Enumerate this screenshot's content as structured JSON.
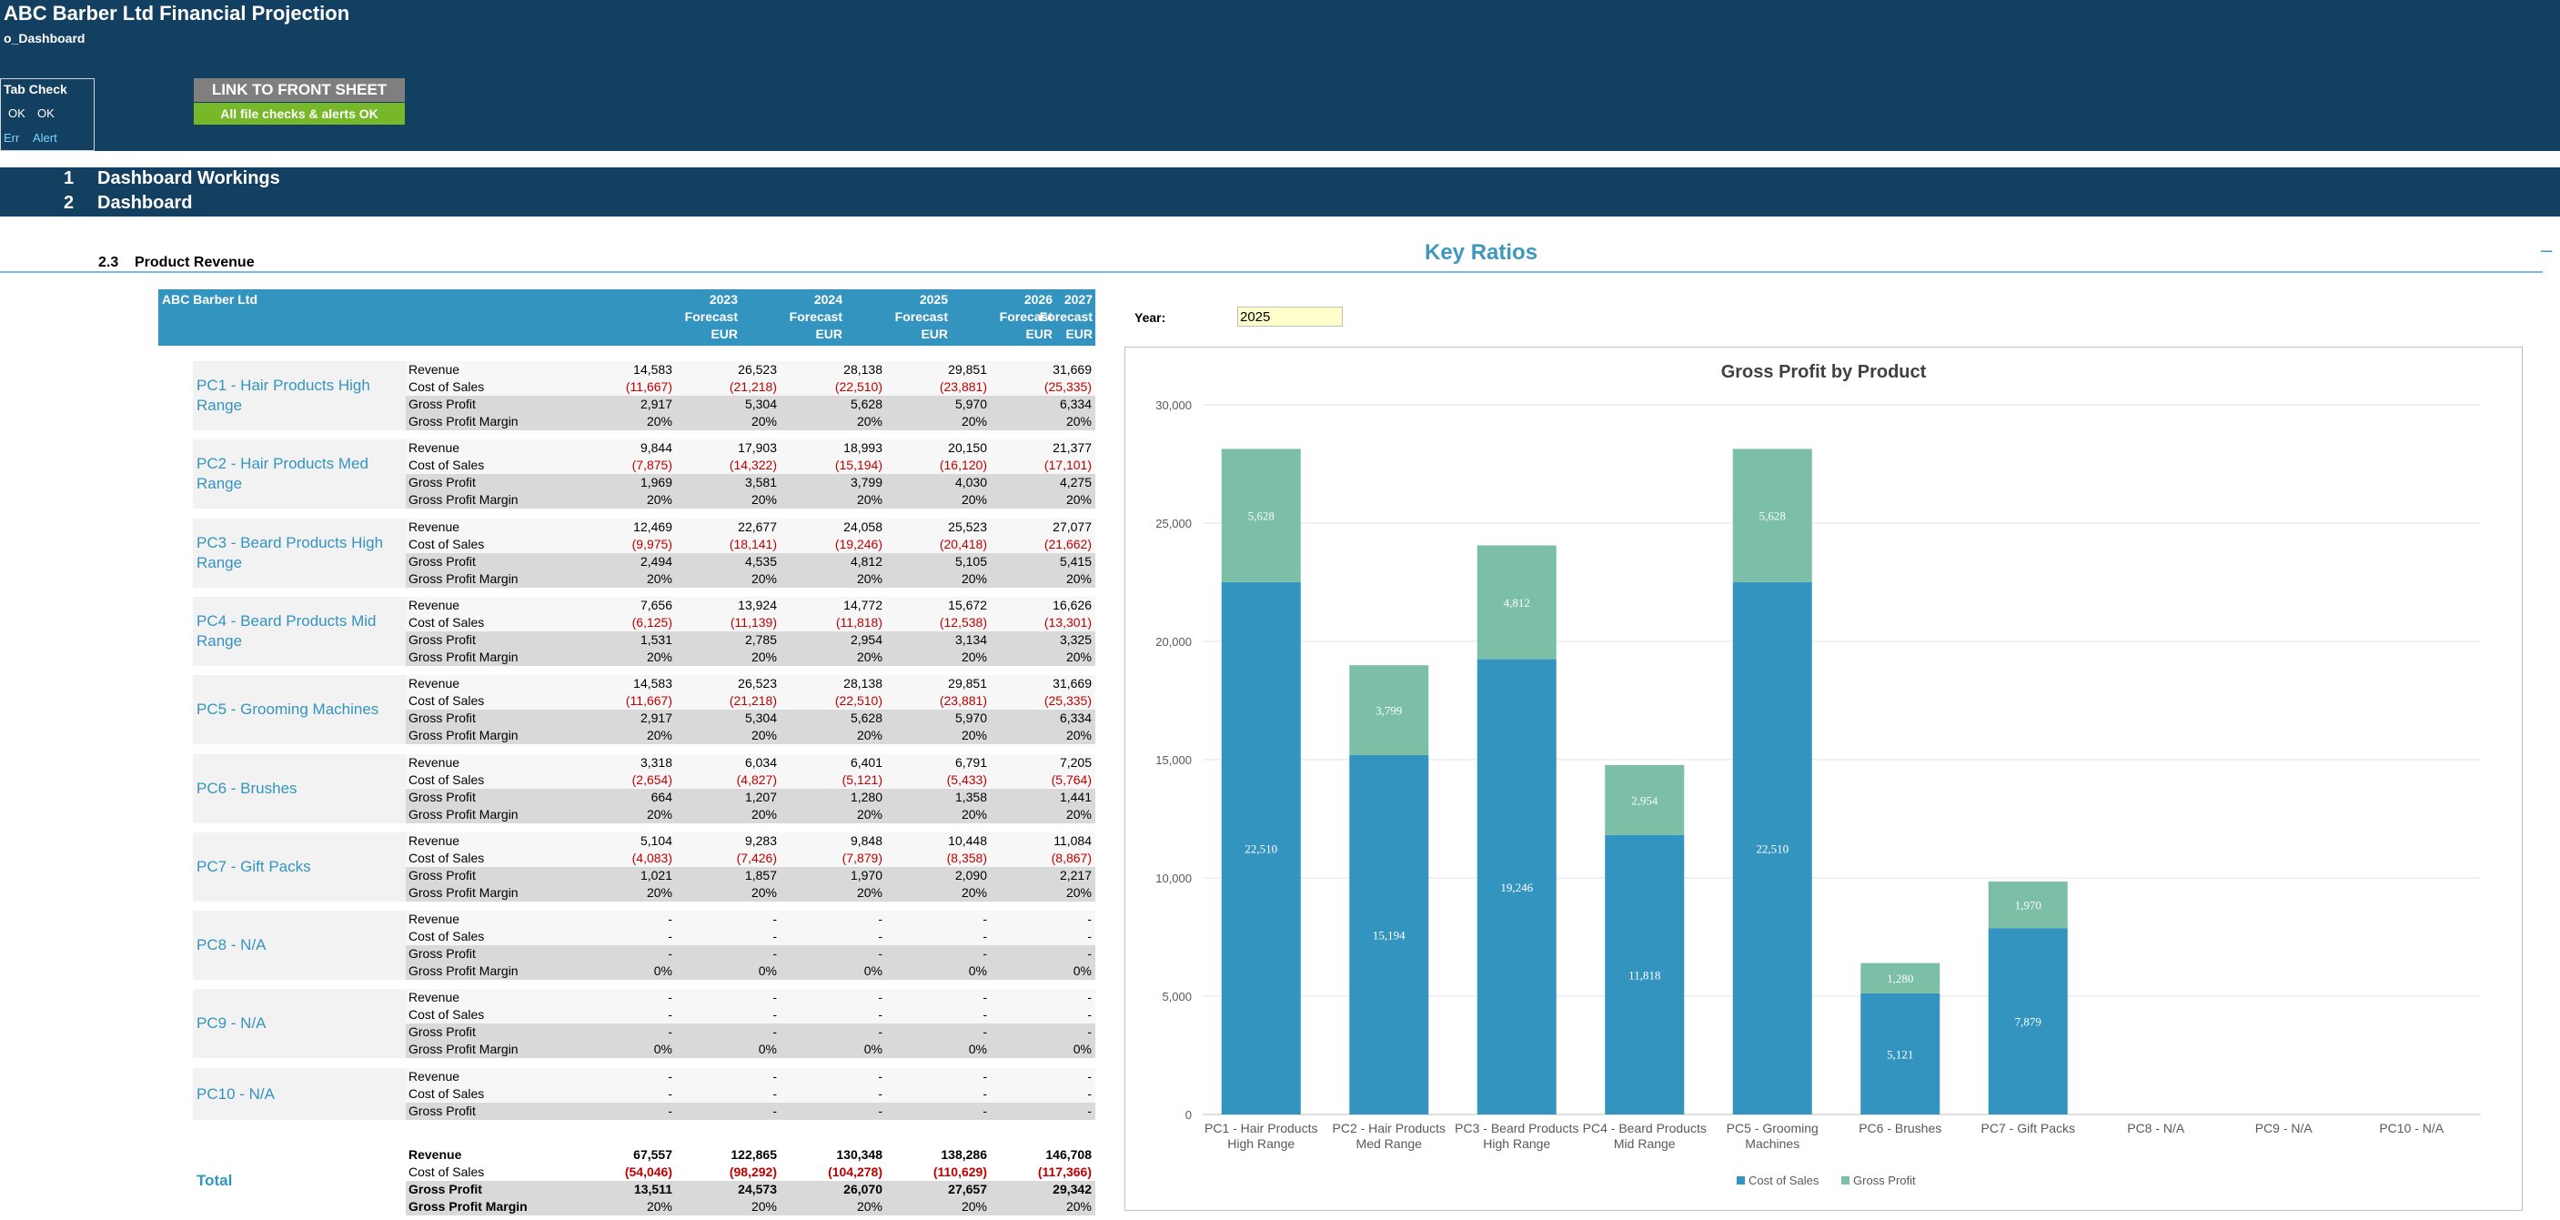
{
  "header": {
    "title": "ABC Barber Ltd Financial Projection",
    "sheet": "o_Dashboard",
    "tab_check": "Tab Check",
    "ok1": "OK",
    "ok2": "OK",
    "err": "Err",
    "alert": "Alert",
    "link_button": "LINK TO FRONT SHEET",
    "checks_status": "All file checks & alerts OK",
    "colors": {
      "band": "#133f61",
      "link": "#7f7f7f",
      "ok": "#76b82a"
    }
  },
  "sections": [
    {
      "num": "1",
      "label": "Dashboard Workings"
    },
    {
      "num": "2",
      "label": "Dashboard"
    }
  ],
  "subsection": {
    "num": "2.3",
    "label": "Product Revenue"
  },
  "key_ratios": {
    "title": "Key Ratios",
    "collapse": "–"
  },
  "table": {
    "company": "ABC Barber Ltd",
    "columns": [
      {
        "year": "2023",
        "type": "Forecast",
        "currency": "EUR"
      },
      {
        "year": "2024",
        "type": "Forecast",
        "currency": "EUR"
      },
      {
        "year": "2025",
        "type": "Forecast",
        "currency": "EUR"
      },
      {
        "year": "2026",
        "type": "Forecast",
        "currency": "EUR"
      },
      {
        "year": "2027",
        "type": "Forecast",
        "currency": "EUR"
      }
    ],
    "products": [
      {
        "name": "PC1 - Hair Products High Range",
        "rows": [
          {
            "label": "Revenue",
            "values": [
              "14,583",
              "26,523",
              "28,138",
              "29,851",
              "31,669"
            ]
          },
          {
            "label": "Cost of Sales",
            "values": [
              "(11,667)",
              "(21,218)",
              "(22,510)",
              "(23,881)",
              "(25,335)"
            ],
            "neg": true
          },
          {
            "label": "Gross Profit",
            "values": [
              "2,917",
              "5,304",
              "5,628",
              "5,970",
              "6,334"
            ]
          },
          {
            "label": "Gross Profit Margin",
            "values": [
              "20%",
              "20%",
              "20%",
              "20%",
              "20%"
            ]
          }
        ]
      },
      {
        "name": "PC2 - Hair Products Med Range",
        "rows": [
          {
            "label": "Revenue",
            "values": [
              "9,844",
              "17,903",
              "18,993",
              "20,150",
              "21,377"
            ]
          },
          {
            "label": "Cost of Sales",
            "values": [
              "(7,875)",
              "(14,322)",
              "(15,194)",
              "(16,120)",
              "(17,101)"
            ],
            "neg": true
          },
          {
            "label": "Gross Profit",
            "values": [
              "1,969",
              "3,581",
              "3,799",
              "4,030",
              "4,275"
            ]
          },
          {
            "label": "Gross Profit Margin",
            "values": [
              "20%",
              "20%",
              "20%",
              "20%",
              "20%"
            ]
          }
        ]
      },
      {
        "name": "PC3 - Beard Products High Range",
        "rows": [
          {
            "label": "Revenue",
            "values": [
              "12,469",
              "22,677",
              "24,058",
              "25,523",
              "27,077"
            ]
          },
          {
            "label": "Cost of Sales",
            "values": [
              "(9,975)",
              "(18,141)",
              "(19,246)",
              "(20,418)",
              "(21,662)"
            ],
            "neg": true
          },
          {
            "label": "Gross Profit",
            "values": [
              "2,494",
              "4,535",
              "4,812",
              "5,105",
              "5,415"
            ]
          },
          {
            "label": "Gross Profit Margin",
            "values": [
              "20%",
              "20%",
              "20%",
              "20%",
              "20%"
            ]
          }
        ]
      },
      {
        "name": "PC4 - Beard Products Mid Range",
        "rows": [
          {
            "label": "Revenue",
            "values": [
              "7,656",
              "13,924",
              "14,772",
              "15,672",
              "16,626"
            ]
          },
          {
            "label": "Cost of Sales",
            "values": [
              "(6,125)",
              "(11,139)",
              "(11,818)",
              "(12,538)",
              "(13,301)"
            ],
            "neg": true
          },
          {
            "label": "Gross Profit",
            "values": [
              "1,531",
              "2,785",
              "2,954",
              "3,134",
              "3,325"
            ]
          },
          {
            "label": "Gross Profit Margin",
            "values": [
              "20%",
              "20%",
              "20%",
              "20%",
              "20%"
            ]
          }
        ]
      },
      {
        "name": "PC5 - Grooming Machines",
        "rows": [
          {
            "label": "Revenue",
            "values": [
              "14,583",
              "26,523",
              "28,138",
              "29,851",
              "31,669"
            ]
          },
          {
            "label": "Cost of Sales",
            "values": [
              "(11,667)",
              "(21,218)",
              "(22,510)",
              "(23,881)",
              "(25,335)"
            ],
            "neg": true
          },
          {
            "label": "Gross Profit",
            "values": [
              "2,917",
              "5,304",
              "5,628",
              "5,970",
              "6,334"
            ]
          },
          {
            "label": "Gross Profit Margin",
            "values": [
              "20%",
              "20%",
              "20%",
              "20%",
              "20%"
            ]
          }
        ]
      },
      {
        "name": "PC6 - Brushes",
        "rows": [
          {
            "label": "Revenue",
            "values": [
              "3,318",
              "6,034",
              "6,401",
              "6,791",
              "7,205"
            ]
          },
          {
            "label": "Cost of Sales",
            "values": [
              "(2,654)",
              "(4,827)",
              "(5,121)",
              "(5,433)",
              "(5,764)"
            ],
            "neg": true
          },
          {
            "label": "Gross Profit",
            "values": [
              "664",
              "1,207",
              "1,280",
              "1,358",
              "1,441"
            ]
          },
          {
            "label": "Gross Profit Margin",
            "values": [
              "20%",
              "20%",
              "20%",
              "20%",
              "20%"
            ]
          }
        ]
      },
      {
        "name": "PC7 - Gift Packs",
        "rows": [
          {
            "label": "Revenue",
            "values": [
              "5,104",
              "9,283",
              "9,848",
              "10,448",
              "11,084"
            ]
          },
          {
            "label": "Cost of Sales",
            "values": [
              "(4,083)",
              "(7,426)",
              "(7,879)",
              "(8,358)",
              "(8,867)"
            ],
            "neg": true
          },
          {
            "label": "Gross Profit",
            "values": [
              "1,021",
              "1,857",
              "1,970",
              "2,090",
              "2,217"
            ]
          },
          {
            "label": "Gross Profit Margin",
            "values": [
              "20%",
              "20%",
              "20%",
              "20%",
              "20%"
            ]
          }
        ]
      },
      {
        "name": "PC8 - N/A",
        "rows": [
          {
            "label": "Revenue",
            "values": [
              "-",
              "-",
              "-",
              "-",
              "-"
            ]
          },
          {
            "label": "Cost of Sales",
            "values": [
              "-",
              "-",
              "-",
              "-",
              "-"
            ]
          },
          {
            "label": "Gross Profit",
            "values": [
              "-",
              "-",
              "-",
              "-",
              "-"
            ]
          },
          {
            "label": "Gross Profit Margin",
            "values": [
              "0%",
              "0%",
              "0%",
              "0%",
              "0%"
            ]
          }
        ]
      },
      {
        "name": "PC9 - N/A",
        "rows": [
          {
            "label": "Revenue",
            "values": [
              "-",
              "-",
              "-",
              "-",
              "-"
            ]
          },
          {
            "label": "Cost of Sales",
            "values": [
              "-",
              "-",
              "-",
              "-",
              "-"
            ]
          },
          {
            "label": "Gross Profit",
            "values": [
              "-",
              "-",
              "-",
              "-",
              "-"
            ]
          },
          {
            "label": "Gross Profit Margin",
            "values": [
              "0%",
              "0%",
              "0%",
              "0%",
              "0%"
            ]
          }
        ]
      },
      {
        "name": "PC10 - N/A",
        "rows": [
          {
            "label": "Revenue",
            "values": [
              "-",
              "-",
              "-",
              "-",
              "-"
            ]
          },
          {
            "label": "Cost of Sales",
            "values": [
              "-",
              "-",
              "-",
              "-",
              "-"
            ]
          },
          {
            "label": "Gross Profit",
            "values": [
              "-",
              "-",
              "-",
              "-",
              "-"
            ]
          }
        ]
      },
      {
        "name": "Total",
        "total": true,
        "rows": [
          {
            "label": "Revenue",
            "values": [
              "67,557",
              "122,865",
              "130,348",
              "138,286",
              "146,708"
            ],
            "bold": true
          },
          {
            "label": "Cost of Sales",
            "values": [
              "(54,046)",
              "(98,292)",
              "(104,278)",
              "(110,629)",
              "(117,366)"
            ],
            "neg": true,
            "bold": true
          },
          {
            "label": "Gross Profit",
            "values": [
              "13,511",
              "24,573",
              "26,070",
              "27,657",
              "29,342"
            ],
            "bold": true
          },
          {
            "label": "Gross Profit Margin",
            "values": [
              "20%",
              "20%",
              "20%",
              "20%",
              "20%"
            ],
            "bold": true
          }
        ]
      }
    ]
  },
  "year_selector": {
    "label": "Year:",
    "value": "2025"
  },
  "chart_data": {
    "type": "bar",
    "stacked": true,
    "title": "Gross Profit by Product",
    "categories": [
      "PC1 - Hair Products High Range",
      "PC2 - Hair Products Med Range",
      "PC3 - Beard Products High Range",
      "PC4 - Beard Products Mid Range",
      "PC5 - Grooming Machines",
      "PC6 - Brushes",
      "PC7 - Gift Packs",
      "PC8 - N/A",
      "PC9 - N/A",
      "PC10 - N/A"
    ],
    "series": [
      {
        "name": "Cost of Sales",
        "color": "#3494c0",
        "values": [
          22510,
          15194,
          19246,
          11818,
          22510,
          5121,
          7879,
          0,
          0,
          0
        ],
        "labels": [
          "22,510",
          "15,194",
          "19,246",
          "11,818",
          "22,510",
          "5,121",
          "7,879",
          "",
          "",
          ""
        ]
      },
      {
        "name": "Gross Profit",
        "color": "#7bbfa6",
        "values": [
          5628,
          3799,
          4812,
          2954,
          5628,
          1280,
          1970,
          0,
          0,
          0
        ],
        "labels": [
          "5,628",
          "3,799",
          "4,812",
          "2,954",
          "5,628",
          "1,280",
          "1,970",
          "",
          "",
          ""
        ]
      }
    ],
    "ylim": [
      0,
      30000
    ],
    "yticks": [
      0,
      5000,
      10000,
      15000,
      20000,
      25000,
      30000
    ],
    "ytick_labels": [
      "0",
      "5,000",
      "10,000",
      "15,000",
      "20,000",
      "25,000",
      "30,000"
    ],
    "grid": true,
    "legend": "bottom"
  }
}
